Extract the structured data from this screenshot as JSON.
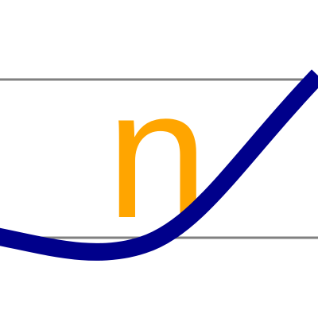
{
  "glyph": {
    "text": "n",
    "color": "#FFA500"
  },
  "lines": {
    "color": "#808080"
  },
  "curve": {
    "color": "#00008B"
  }
}
